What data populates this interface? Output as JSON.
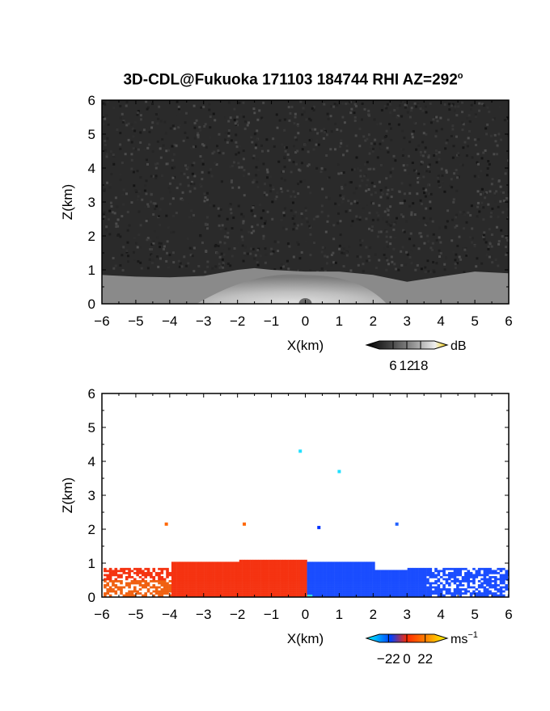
{
  "title": {
    "main": "3D-CDL@Fukuoka 171103 184744 RHI AZ=292",
    "sup": "o"
  },
  "chart_data": [
    {
      "type": "heatmap",
      "name": "panel-snr",
      "xlabel": "X(km)",
      "ylabel": "Z(km)",
      "xlim": [
        -6,
        6
      ],
      "ylim": [
        0,
        6
      ],
      "xticks": [
        -6,
        -5,
        -4,
        -3,
        -2,
        -1,
        0,
        1,
        2,
        3,
        4,
        5,
        6
      ],
      "yticks": [
        0,
        1,
        2,
        3,
        4,
        5,
        6
      ],
      "grid": false,
      "background_color": "#2a2a2a",
      "colorbar": {
        "unit": "dB",
        "ticks": [
          6,
          12,
          18
        ],
        "range": [
          0,
          24
        ],
        "colors": [
          "#000000",
          "#333333",
          "#777777",
          "#bbbbbb",
          "#ffffff",
          "#ffd700"
        ]
      },
      "layer_top_km": [
        [
          -6.0,
          0.85
        ],
        [
          -5.0,
          0.8
        ],
        [
          -4.0,
          0.78
        ],
        [
          -3.0,
          0.82
        ],
        [
          -2.0,
          1.0
        ],
        [
          -1.5,
          1.05
        ],
        [
          -1.0,
          1.0
        ],
        [
          0.0,
          0.95
        ],
        [
          1.0,
          0.95
        ],
        [
          2.0,
          0.85
        ],
        [
          2.5,
          0.75
        ],
        [
          3.0,
          0.65
        ],
        [
          4.0,
          0.8
        ],
        [
          5.0,
          0.95
        ],
        [
          6.0,
          0.9
        ]
      ]
    },
    {
      "type": "heatmap",
      "name": "panel-velocity",
      "xlabel": "X(km)",
      "ylabel": "Z(km)",
      "xlim": [
        -6,
        6
      ],
      "ylim": [
        0,
        6
      ],
      "xticks": [
        -6,
        -5,
        -4,
        -3,
        -2,
        -1,
        0,
        1,
        2,
        3,
        4,
        5,
        6
      ],
      "yticks": [
        0,
        1,
        2,
        3,
        4,
        5,
        6
      ],
      "grid": false,
      "background_color": "#ffffff",
      "colorbar": {
        "unit": "ms",
        "unit_sup": "−1",
        "ticks": [
          -22,
          0,
          22
        ],
        "tick_labels": [
          "−22",
          "0",
          "22"
        ],
        "range": [
          -33,
          33
        ],
        "colors": [
          "#00ffff",
          "#0040ff",
          "#ff2a00",
          "#ff8800",
          "#ffff00"
        ]
      },
      "negative_region": {
        "x": [
          -6,
          0
        ],
        "color": "#f53311"
      },
      "positive_region": {
        "x": [
          0,
          6
        ],
        "color": "#1a4dff"
      },
      "isolated_points": [
        {
          "x": -4.1,
          "z": 2.15,
          "color": "#ff6600"
        },
        {
          "x": -1.8,
          "z": 2.15,
          "color": "#ff6600"
        },
        {
          "x": 0.4,
          "z": 2.05,
          "color": "#0030ff"
        },
        {
          "x": 2.7,
          "z": 2.15,
          "color": "#2060ff"
        },
        {
          "x": -0.15,
          "z": 4.3,
          "color": "#20e0ff"
        },
        {
          "x": 1.0,
          "z": 3.7,
          "color": "#20e0ff"
        }
      ]
    }
  ]
}
